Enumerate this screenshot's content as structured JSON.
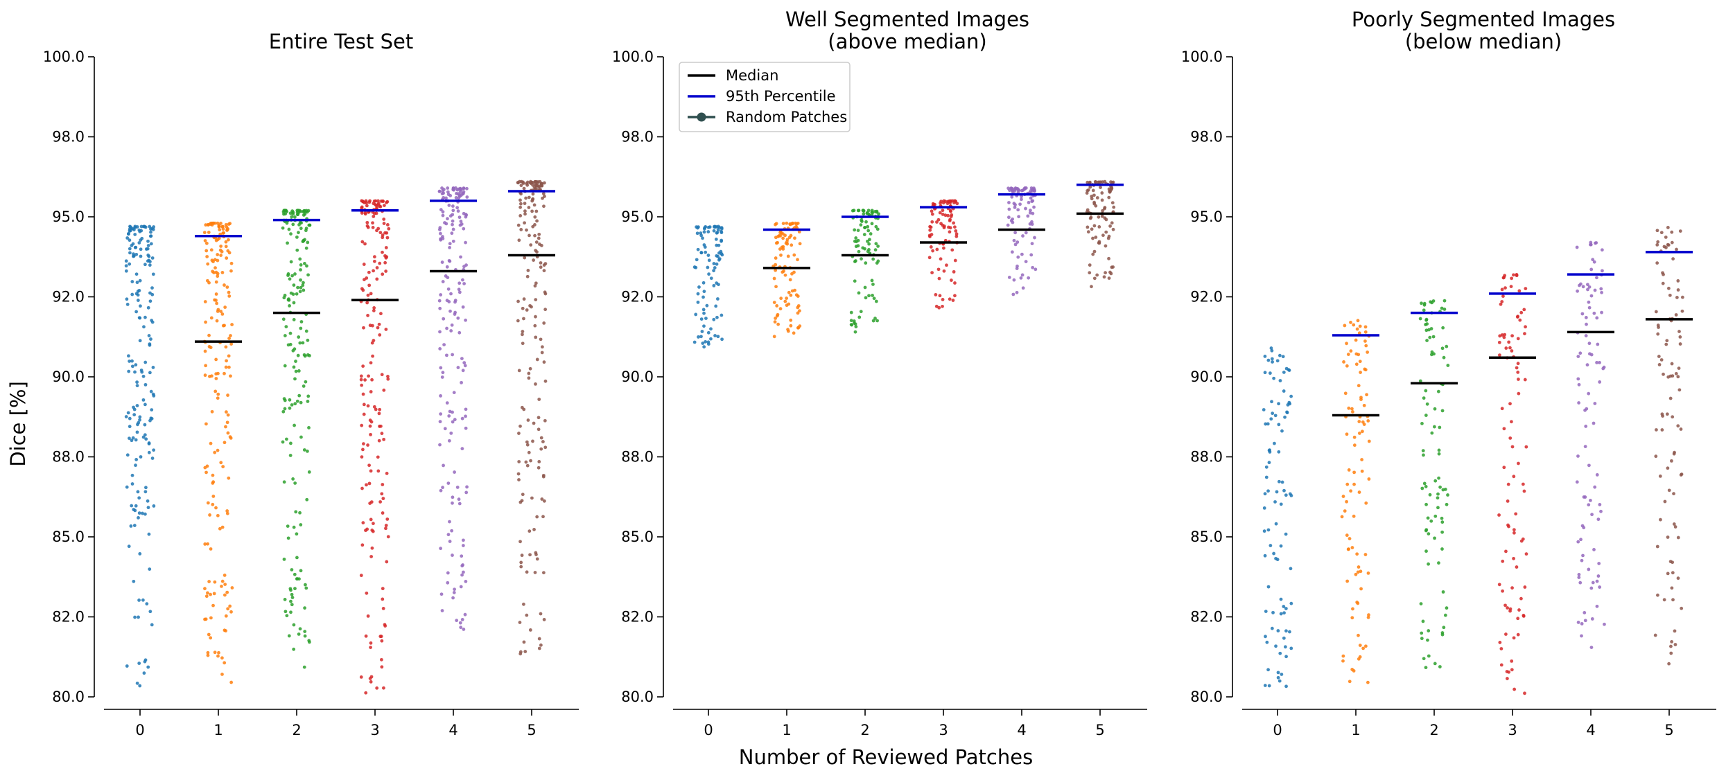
{
  "figure": {
    "ylabel": "Dice [%]",
    "xlabel": "Number of Reviewed Patches"
  },
  "legend": {
    "entries": [
      "Median",
      "95th Percentile",
      "Random Patches"
    ],
    "colors": [
      "#000000",
      "#0000cc",
      "#2f4f4f"
    ]
  },
  "series_colors": [
    "#1f77b4",
    "#ff7f0e",
    "#2ca02c",
    "#d62728",
    "#9467bd",
    "#8c564b"
  ],
  "chart_data": [
    {
      "type": "scatter",
      "title": "Entire Test Set",
      "categories": [
        "0",
        "1",
        "2",
        "3",
        "4",
        "5"
      ],
      "ylim": [
        80,
        100
      ],
      "yticks": [
        "80.0",
        "82.0",
        "85.0",
        "88.0",
        "90.0",
        "92.0",
        "95.0",
        "98.0",
        "100.0"
      ],
      "grid": false,
      "series": [
        {
          "category": "0",
          "low": 80.2,
          "high": 94.7,
          "median": null,
          "p95": null
        },
        {
          "category": "1",
          "low": 80.1,
          "high": 94.8,
          "median": 91.1,
          "p95": 94.4
        },
        {
          "category": "2",
          "low": 80.8,
          "high": 95.2,
          "median": 92.0,
          "p95": 94.9
        },
        {
          "category": "3",
          "low": 80.1,
          "high": 95.5,
          "median": 92.4,
          "p95": 95.2
        },
        {
          "category": "4",
          "low": 81.5,
          "high": 95.9,
          "median": 93.3,
          "p95": 95.5
        },
        {
          "category": "5",
          "low": 81.0,
          "high": 96.1,
          "median": 93.8,
          "p95": 95.8
        }
      ]
    },
    {
      "type": "scatter",
      "title": "Well Segmented Images\n(above median)",
      "categories": [
        "0",
        "1",
        "2",
        "3",
        "4",
        "5"
      ],
      "ylim": [
        80,
        100
      ],
      "yticks": [
        "80.0",
        "82.0",
        "85.0",
        "88.0",
        "90.0",
        "92.0",
        "95.0",
        "98.0",
        "100.0"
      ],
      "grid": false,
      "legend_position": "top-left",
      "series": [
        {
          "category": "0",
          "low": 90.9,
          "high": 94.7,
          "median": null,
          "p95": null
        },
        {
          "category": "1",
          "low": 91.2,
          "high": 94.8,
          "median": 93.4,
          "p95": 94.6
        },
        {
          "category": "2",
          "low": 91.4,
          "high": 95.2,
          "median": 93.8,
          "p95": 95.0
        },
        {
          "category": "3",
          "low": 92.0,
          "high": 95.5,
          "median": 94.2,
          "p95": 95.3
        },
        {
          "category": "4",
          "low": 92.4,
          "high": 95.9,
          "median": 94.6,
          "p95": 95.7
        },
        {
          "category": "5",
          "low": 92.8,
          "high": 96.1,
          "median": 95.1,
          "p95": 96.0
        }
      ]
    },
    {
      "type": "scatter",
      "title": "Poorly Segmented Images\n(below median)",
      "categories": [
        "0",
        "1",
        "2",
        "3",
        "4",
        "5"
      ],
      "ylim": [
        80,
        100
      ],
      "yticks": [
        "80.0",
        "82.0",
        "85.0",
        "88.0",
        "90.0",
        "92.0",
        "95.0",
        "98.0",
        "100.0"
      ],
      "grid": false,
      "series": [
        {
          "category": "0",
          "low": 80.3,
          "high": 90.9,
          "median": null,
          "p95": null
        },
        {
          "category": "1",
          "low": 80.1,
          "high": 91.8,
          "median": 88.8,
          "p95": 91.3
        },
        {
          "category": "2",
          "low": 80.8,
          "high": 92.4,
          "median": 89.8,
          "p95": 92.0
        },
        {
          "category": "3",
          "low": 80.1,
          "high": 93.2,
          "median": 90.6,
          "p95": 92.6
        },
        {
          "category": "4",
          "low": 81.5,
          "high": 94.2,
          "median": 91.4,
          "p95": 93.2
        },
        {
          "category": "5",
          "low": 81.0,
          "high": 94.7,
          "median": 91.8,
          "p95": 93.9
        }
      ]
    }
  ]
}
